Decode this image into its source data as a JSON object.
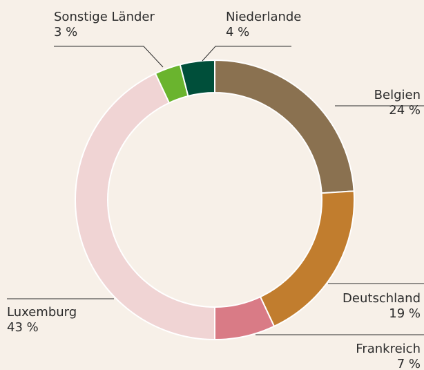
{
  "chart_data": {
    "type": "donut",
    "categories": [
      "Belgien",
      "Deutschland",
      "Frankreich",
      "Luxemburg",
      "Sonstige Länder",
      "Niederlande"
    ],
    "values": [
      24,
      19,
      7,
      43,
      3,
      4
    ],
    "value_labels": [
      "24 %",
      "19 %",
      "7 %",
      "43 %",
      "3 %",
      "4 %"
    ],
    "colors": [
      "#8a7150",
      "#c17d2e",
      "#d97b86",
      "#f0d4d4",
      "#6ab42e",
      "#004f3a"
    ]
  }
}
